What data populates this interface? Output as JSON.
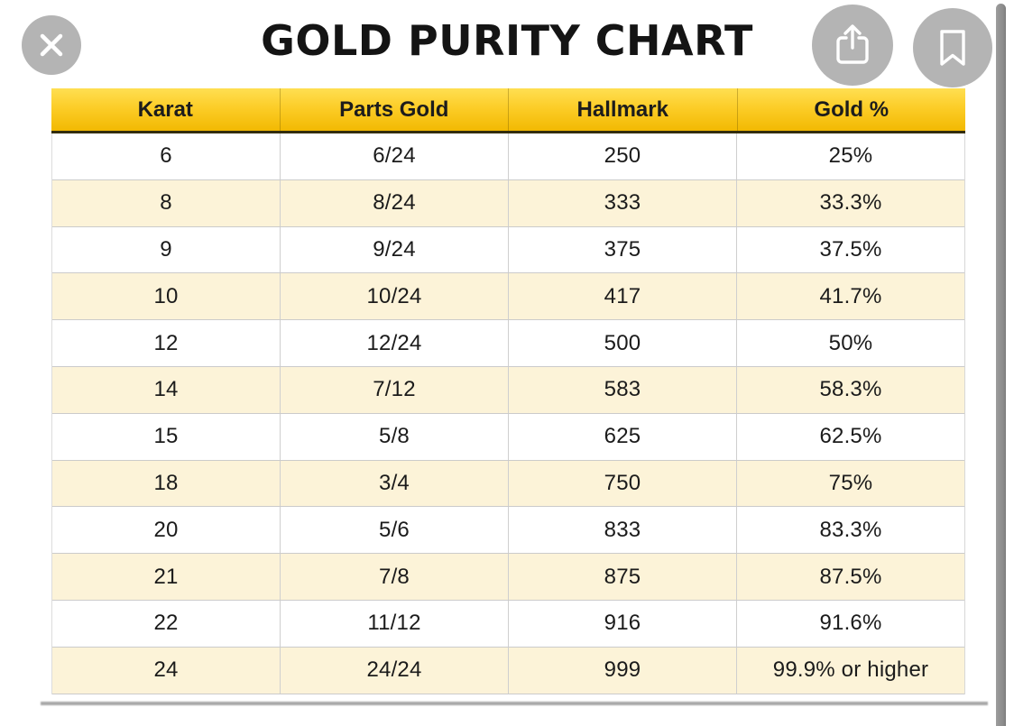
{
  "page": {
    "title": "GOLD PURITY CHART"
  },
  "toolbar": {
    "close_icon": "close-x",
    "share_icon": "share-box-arrow-up",
    "bookmark_icon": "bookmark-outline"
  },
  "table": {
    "columns": [
      "Karat",
      "Parts Gold",
      "Hallmark",
      "Gold %"
    ],
    "rows": [
      [
        "6",
        "6/24",
        "250",
        "25%"
      ],
      [
        "8",
        "8/24",
        "333",
        "33.3%"
      ],
      [
        "9",
        "9/24",
        "375",
        "37.5%"
      ],
      [
        "10",
        "10/24",
        "417",
        "41.7%"
      ],
      [
        "12",
        "12/24",
        "500",
        "50%"
      ],
      [
        "14",
        "7/12",
        "583",
        "58.3%"
      ],
      [
        "15",
        "5/8",
        "625",
        "62.5%"
      ],
      [
        "18",
        "3/4",
        "750",
        "75%"
      ],
      [
        "20",
        "5/6",
        "833",
        "83.3%"
      ],
      [
        "21",
        "7/8",
        "875",
        "87.5%"
      ],
      [
        "22",
        "11/12",
        "916",
        "91.6%"
      ],
      [
        "24",
        "24/24",
        "999",
        "99.9% or higher"
      ]
    ]
  },
  "colors": {
    "header_gradient_top": "#ffdf52",
    "header_gradient_bottom": "#f2b902",
    "header_underline": "#332d0c",
    "row_alternate": "#fcf3d8",
    "row_plain": "#ffffff",
    "gridline": "#cbcbcb",
    "button_gray": "#b4b4b4",
    "icon_white": "#ffffff",
    "scrollbar_gray": "#8b8b8b",
    "text_dark": "#1b1b1b"
  },
  "chart_data": {
    "type": "table",
    "title": "GOLD PURITY CHART",
    "columns": [
      "Karat",
      "Parts Gold",
      "Hallmark",
      "Gold %"
    ],
    "rows": [
      {
        "karat": "6",
        "parts_gold": "6/24",
        "hallmark": "250",
        "gold_percent": "25%"
      },
      {
        "karat": "8",
        "parts_gold": "8/24",
        "hallmark": "333",
        "gold_percent": "33.3%"
      },
      {
        "karat": "9",
        "parts_gold": "9/24",
        "hallmark": "375",
        "gold_percent": "37.5%"
      },
      {
        "karat": "10",
        "parts_gold": "10/24",
        "hallmark": "417",
        "gold_percent": "41.7%"
      },
      {
        "karat": "12",
        "parts_gold": "12/24",
        "hallmark": "500",
        "gold_percent": "50%"
      },
      {
        "karat": "14",
        "parts_gold": "7/12",
        "hallmark": "583",
        "gold_percent": "58.3%"
      },
      {
        "karat": "15",
        "parts_gold": "5/8",
        "hallmark": "625",
        "gold_percent": "62.5%"
      },
      {
        "karat": "18",
        "parts_gold": "3/4",
        "hallmark": "750",
        "gold_percent": "75%"
      },
      {
        "karat": "20",
        "parts_gold": "5/6",
        "hallmark": "833",
        "gold_percent": "83.3%"
      },
      {
        "karat": "21",
        "parts_gold": "7/8",
        "hallmark": "875",
        "gold_percent": "87.5%"
      },
      {
        "karat": "22",
        "parts_gold": "11/12",
        "hallmark": "916",
        "gold_percent": "91.6%"
      },
      {
        "karat": "24",
        "parts_gold": "24/24",
        "hallmark": "999",
        "gold_percent": "99.9% or higher"
      }
    ]
  }
}
